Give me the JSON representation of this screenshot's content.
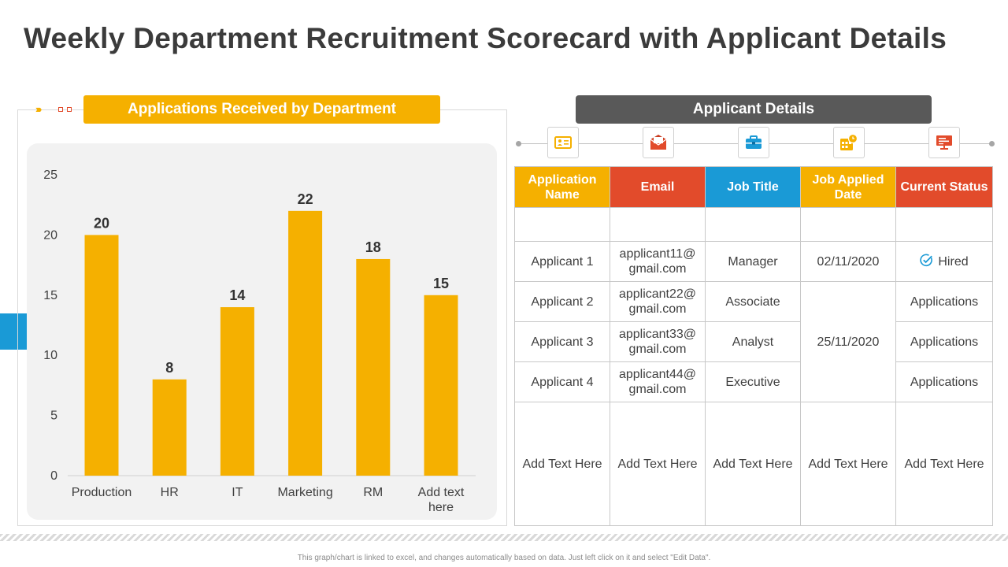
{
  "page": {
    "title": "Weekly Department Recruitment Scorecard with Applicant Details",
    "footnote": "This graph/chart is linked to excel, and changes automatically based on data. Just left click on it and select \"Edit Data\"."
  },
  "colors": {
    "yellow": "#f5b000",
    "red": "#e24b2b",
    "blue": "#1a9ad6",
    "dark": "#595959"
  },
  "chart_banner": "Applications Received by Department",
  "chart_data": {
    "type": "bar",
    "title": "Applications Received by Department",
    "categories": [
      "Production",
      "HR",
      "IT",
      "Marketing",
      "RM",
      "Add text here"
    ],
    "values": [
      20,
      8,
      14,
      22,
      18,
      15
    ],
    "ylim": [
      0,
      25
    ],
    "yticks": [
      0,
      5,
      10,
      15,
      20,
      25
    ],
    "color": "#f5b000",
    "grid": false,
    "legend": "none",
    "data_labels": true
  },
  "details": {
    "banner": "Applicant Details",
    "icons": [
      "id-card-icon",
      "email-icon",
      "briefcase-icon",
      "calendar-icon",
      "presentation-icon"
    ],
    "headers": {
      "name": "Application Name",
      "email": "Email",
      "job": "Job Title",
      "date": "Job Applied Date",
      "status": "Current Status"
    },
    "rows": [
      {
        "name": "Applicant 1",
        "email": "applicant11@ gmail.com",
        "job": "Manager",
        "date": "02/11/2020",
        "status": "Hired"
      },
      {
        "name": "Applicant 2",
        "email": "applicant22@ gmail.com",
        "job": "Associate",
        "status": "Applications"
      },
      {
        "name": "Applicant 3",
        "email": "applicant33@ gmail.com",
        "job": "Analyst",
        "status": "Applications"
      },
      {
        "name": "Applicant 4",
        "email": "applicant44@ gmail.com",
        "job": "Executive",
        "status": "Applications"
      }
    ],
    "shared_date": "25/11/2020",
    "add_text": "Add Text Here"
  }
}
